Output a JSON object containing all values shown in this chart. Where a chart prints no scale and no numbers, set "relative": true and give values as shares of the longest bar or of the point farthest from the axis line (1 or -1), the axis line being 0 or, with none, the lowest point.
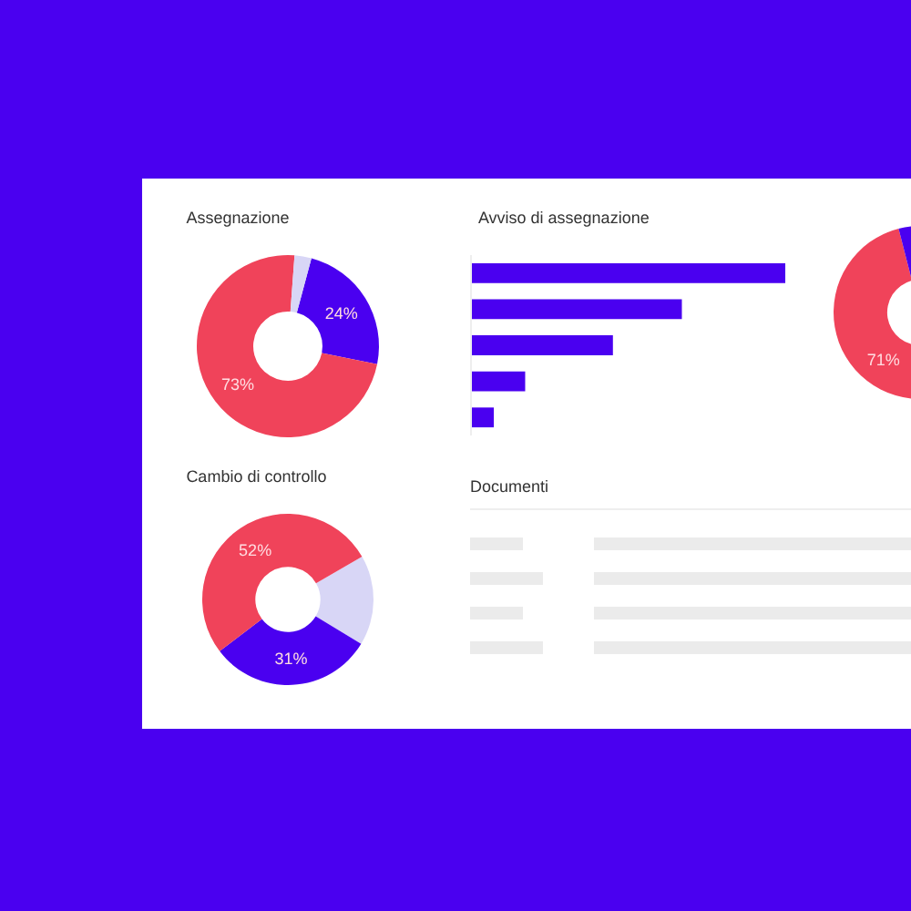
{
  "chart_data": [
    {
      "type": "donut",
      "title": "Assegnazione",
      "categories": [
        null,
        null,
        null
      ],
      "values": [
        24,
        73,
        3
      ],
      "colors": [
        "#4a00f0",
        "#f0435a",
        "#d8d6f6"
      ],
      "value_labels": [
        "24%",
        "73%",
        null
      ]
    },
    {
      "type": "bar",
      "title": "Avviso di assegnazione",
      "orientation": "horizontal",
      "relative": true,
      "categories": [
        null,
        null,
        null,
        null,
        null
      ],
      "values": [
        1,
        0.67,
        0.45,
        0.17,
        0.07
      ],
      "color": "#4a00f0"
    },
    {
      "type": "donut",
      "categories": [
        null,
        null
      ],
      "values": [
        71,
        29
      ],
      "colors": [
        "#f0435a",
        "#4a00f0"
      ],
      "value_labels": [
        "71%",
        null
      ]
    },
    {
      "type": "donut",
      "title": "Cambio di controllo",
      "categories": [
        null,
        null,
        null
      ],
      "values": [
        17,
        31,
        52
      ],
      "colors": [
        "#d8d6f6",
        "#4a00f0",
        "#f0435a"
      ],
      "value_labels": [
        null,
        "31%",
        "52%"
      ]
    },
    {
      "type": "other",
      "title": "Documenti"
    }
  ]
}
